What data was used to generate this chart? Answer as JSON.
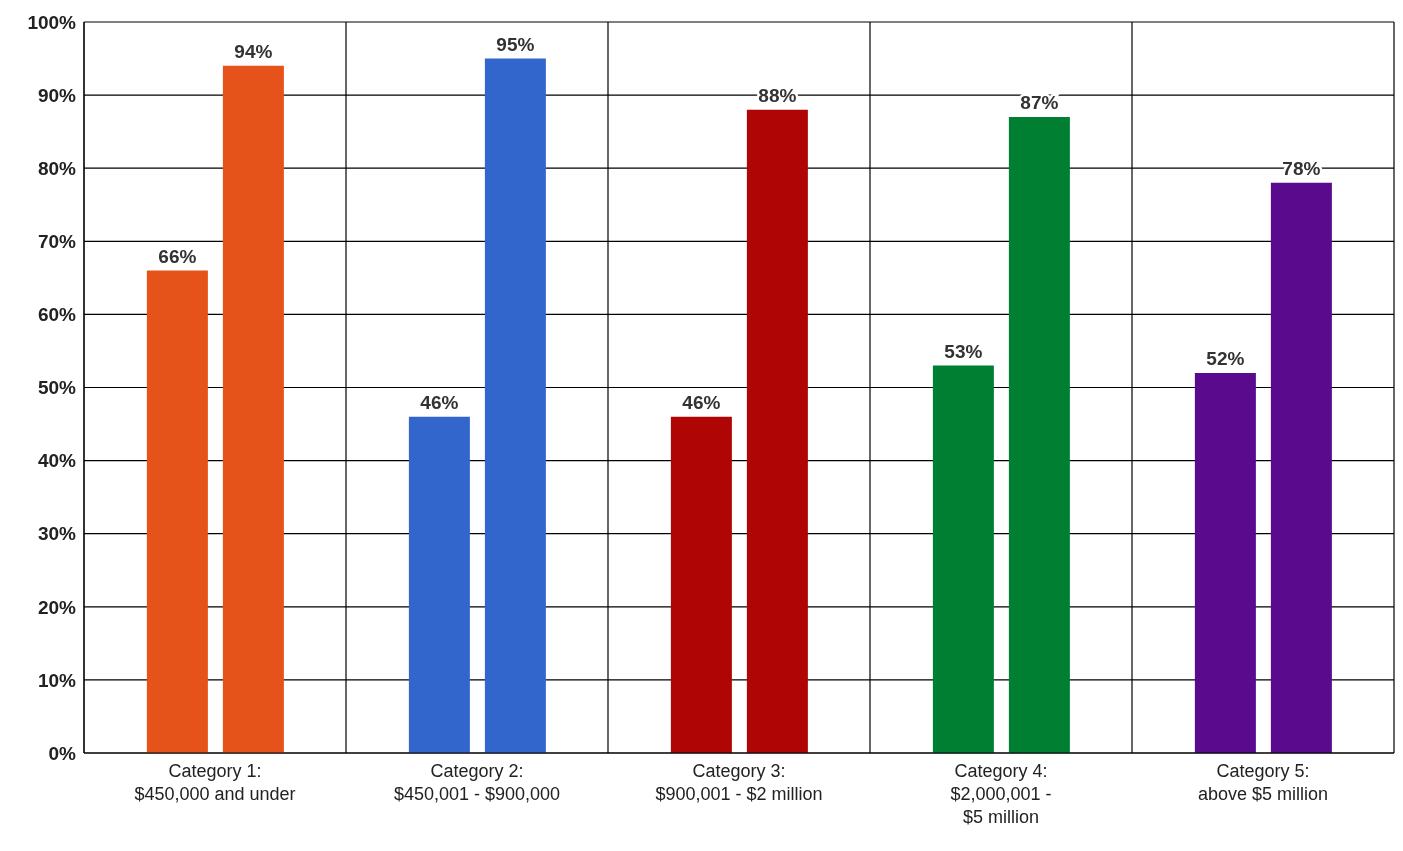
{
  "chart_data": {
    "type": "bar",
    "categories": [
      "Category 1:\n$450,000 and under",
      "Category 2:\n$450,001 - $900,000",
      "Category 3:\n$900,001 - $2 million",
      "Category 4:\n$2,000,001 -\n$5 million",
      "Category 5:\nabove $5 million"
    ],
    "series": [
      {
        "colors": [
          "#e5531a",
          "#3366cc",
          "#b00505",
          "#007f32",
          "#5a0a8c"
        ],
        "values": [
          66,
          46,
          46,
          53,
          52
        ],
        "value_labels": [
          "66%",
          "46%",
          "46%",
          "53%",
          "52%"
        ]
      },
      {
        "colors": [
          "#e5531a",
          "#3366cc",
          "#b00505",
          "#007f32",
          "#5a0a8c"
        ],
        "values": [
          94,
          95,
          88,
          87,
          78
        ],
        "value_labels": [
          "94%",
          "95%",
          "88%",
          "87%",
          "78%"
        ]
      }
    ],
    "ylim": [
      0,
      100
    ],
    "yticks": [
      {
        "value": 0,
        "label": "0%"
      },
      {
        "value": 10,
        "label": "10%"
      },
      {
        "value": 20,
        "label": "20%"
      },
      {
        "value": 30,
        "label": "30%"
      },
      {
        "value": 40,
        "label": "40%"
      },
      {
        "value": 50,
        "label": "50%"
      },
      {
        "value": 60,
        "label": "60%"
      },
      {
        "value": 70,
        "label": "70%"
      },
      {
        "value": 80,
        "label": "80%"
      },
      {
        "value": 90,
        "label": "90%"
      },
      {
        "value": 100,
        "label": "100%"
      }
    ],
    "grid": true
  }
}
